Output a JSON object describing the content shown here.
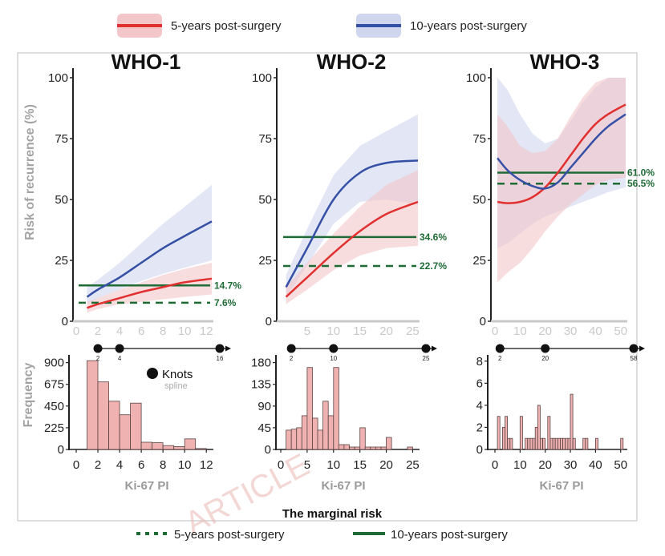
{
  "colors": {
    "red": "#e0302f",
    "blue": "#3550a5",
    "green": "#1f6b35",
    "red_band": "#f3c6c9",
    "blue_band": "#cfd6ee",
    "bar_fill": "#f0b1b1",
    "bar_stroke": "#5a4545"
  },
  "legend_top": {
    "items": [
      {
        "label": "5-years post-surgery",
        "color": "#e0302f"
      },
      {
        "label": "10-years post-surgery",
        "color": "#3550a5"
      }
    ]
  },
  "legend_bottom": {
    "title": "The marginal risk",
    "items": [
      {
        "label": "5-years post-surgery",
        "style": "dashed"
      },
      {
        "label": "10-years post-surgery",
        "style": "solid"
      }
    ]
  },
  "knots_legend": {
    "label": "Knots",
    "sublabel": "spline"
  },
  "watermark": "ARTICLE",
  "chart_data": [
    {
      "type": "line",
      "title": "WHO-1",
      "ylabel": "Risk of recurrence (%)",
      "xlim": [
        0,
        12.5
      ],
      "ylim": [
        0,
        100
      ],
      "xticks": [
        0,
        2,
        4,
        6,
        8,
        10,
        12
      ],
      "yticks": [
        0,
        25,
        50,
        75,
        100
      ],
      "series": [
        {
          "name": "5-years post-surgery",
          "x": [
            1,
            2,
            4,
            6,
            8,
            10,
            12.5
          ],
          "y": [
            5.5,
            7,
            9.5,
            12,
            14,
            16,
            17.5
          ],
          "lower": [
            3.5,
            5,
            7,
            8,
            9,
            10,
            11
          ],
          "upper": [
            8,
            9.5,
            13,
            16,
            19,
            21.5,
            24
          ]
        },
        {
          "name": "10-years post-surgery",
          "x": [
            1,
            2,
            4,
            6,
            8,
            10,
            12.5
          ],
          "y": [
            10,
            13,
            18,
            24,
            30,
            35,
            41
          ],
          "lower": [
            7,
            9.5,
            13,
            16.5,
            19.5,
            22,
            25
          ],
          "upper": [
            14,
            17,
            24,
            32,
            40,
            47,
            56
          ]
        }
      ],
      "marginal": [
        {
          "name": "10-years post-surgery",
          "value": 14.7,
          "label": "14.7%",
          "style": "solid"
        },
        {
          "name": "5-years post-surgery",
          "value": 7.6,
          "label": "7.6%",
          "style": "dashed"
        }
      ],
      "histogram": {
        "xlabel": "Ki-67 PI",
        "ylabel": "Frequency",
        "xticks": [
          0,
          2,
          4,
          6,
          8,
          10,
          12
        ],
        "yticks": [
          0,
          225,
          450,
          675,
          900
        ],
        "ylim": [
          0,
          1030
        ],
        "bin_width": 1,
        "bin_starts": [
          1,
          2,
          3,
          4,
          5,
          6,
          7,
          8,
          9,
          10,
          11
        ],
        "counts": [
          920,
          700,
          500,
          360,
          480,
          75,
          70,
          40,
          30,
          110,
          10
        ],
        "knots": [
          2,
          4,
          16
        ],
        "knot_labels": [
          "2",
          "4",
          "16"
        ],
        "axis_end": 13.8
      }
    },
    {
      "type": "line",
      "title": "WHO-2",
      "xlim": [
        0,
        26
      ],
      "ylim": [
        0,
        100
      ],
      "xticks": [
        5,
        10,
        15,
        20,
        25
      ],
      "yticks": [
        0,
        25,
        50,
        75,
        100
      ],
      "series": [
        {
          "name": "5-years post-surgery",
          "x": [
            1,
            5,
            10,
            15,
            20,
            26
          ],
          "y": [
            10,
            18,
            28,
            37,
            44,
            49
          ],
          "lower": [
            7,
            13,
            21,
            27,
            30,
            31
          ],
          "upper": [
            14,
            24,
            36,
            47,
            56,
            62
          ]
        },
        {
          "name": "10-years post-surgery",
          "x": [
            1,
            5,
            10,
            15,
            20,
            26
          ],
          "y": [
            14,
            30,
            50,
            61,
            65,
            66
          ],
          "lower": [
            10,
            23,
            40,
            49,
            50,
            48
          ],
          "upper": [
            19,
            38,
            60,
            72,
            78,
            85
          ]
        }
      ],
      "marginal": [
        {
          "name": "10-years post-surgery",
          "value": 34.6,
          "label": "34.6%",
          "style": "solid"
        },
        {
          "name": "5-years post-surgery",
          "value": 22.7,
          "label": "22.7%",
          "style": "dashed"
        }
      ],
      "histogram": {
        "xlabel": "Ki-67 PI",
        "xticks": [
          0,
          5,
          10,
          15,
          20,
          25
        ],
        "yticks": [
          0,
          45,
          90,
          135,
          180
        ],
        "ylim": [
          0,
          206
        ],
        "bin_width": 1,
        "bin_starts": [
          1,
          2,
          3,
          4,
          5,
          6,
          7,
          8,
          9,
          10,
          11,
          12,
          13,
          14,
          15,
          16,
          17,
          18,
          19,
          20,
          24
        ],
        "counts": [
          40,
          42,
          45,
          70,
          170,
          65,
          40,
          100,
          70,
          170,
          10,
          10,
          5,
          5,
          45,
          5,
          5,
          5,
          5,
          25,
          5
        ],
        "knots": [
          2,
          10,
          25
        ],
        "knot_labels": [
          "2",
          "10",
          "25"
        ],
        "axis_end": 28
      }
    },
    {
      "type": "line",
      "title": "WHO-3",
      "xlim": [
        0,
        52
      ],
      "ylim": [
        0,
        100
      ],
      "xticks": [
        0,
        10,
        20,
        30,
        40,
        50
      ],
      "yticks": [
        0,
        25,
        50,
        75,
        100
      ],
      "series": [
        {
          "name": "5-years post-surgery",
          "x": [
            1,
            5,
            10,
            15,
            20,
            25,
            30,
            35,
            40,
            45,
            52
          ],
          "y": [
            49,
            48.5,
            49,
            51,
            55,
            61,
            68,
            75,
            81,
            85,
            89
          ],
          "lower": [
            16,
            20,
            24,
            30,
            37,
            43,
            48,
            52,
            56,
            58,
            59
          ],
          "upper": [
            85,
            80,
            72,
            69,
            70,
            75,
            84,
            92,
            98,
            100,
            100
          ]
        },
        {
          "name": "10-years post-surgery",
          "x": [
            1,
            5,
            10,
            15,
            20,
            25,
            30,
            35,
            40,
            45,
            52
          ],
          "y": [
            67,
            62,
            58,
            55.5,
            54.5,
            57,
            63,
            69,
            75,
            80,
            85
          ],
          "lower": [
            30,
            32,
            36,
            40,
            43,
            45,
            47,
            49,
            51,
            53,
            55
          ],
          "upper": [
            100,
            95,
            85,
            77,
            73,
            75,
            82,
            90,
            96,
            100,
            100
          ]
        }
      ],
      "marginal": [
        {
          "name": "10-years post-surgery",
          "value": 61.0,
          "label": "61.0%",
          "style": "solid"
        },
        {
          "name": "5-years post-surgery",
          "value": 56.5,
          "label": "56.5%",
          "style": "dashed"
        }
      ],
      "histogram": {
        "xlabel": "Ki-67 PI",
        "xticks": [
          0,
          10,
          20,
          30,
          40,
          50
        ],
        "yticks": [
          0,
          2,
          4,
          6,
          8
        ],
        "ylim": [
          0,
          9
        ],
        "bin_width": 1,
        "bin_starts": [
          1,
          3,
          4,
          5,
          6,
          10,
          12,
          13,
          14,
          15,
          16,
          17,
          18,
          19,
          21,
          22,
          23,
          24,
          25,
          26,
          27,
          28,
          29,
          30,
          31,
          35,
          36,
          40,
          50
        ],
        "counts": [
          3,
          2,
          3,
          1,
          1,
          3,
          1,
          1,
          1,
          1,
          2,
          4,
          1,
          1,
          3,
          1,
          1,
          1,
          1,
          1,
          1,
          1,
          1,
          5,
          1,
          1,
          1,
          1,
          1
        ],
        "knots": [
          2,
          20,
          58
        ],
        "knot_labels": [
          "2",
          "20",
          "58"
        ],
        "axis_end": 58.5
      }
    }
  ]
}
